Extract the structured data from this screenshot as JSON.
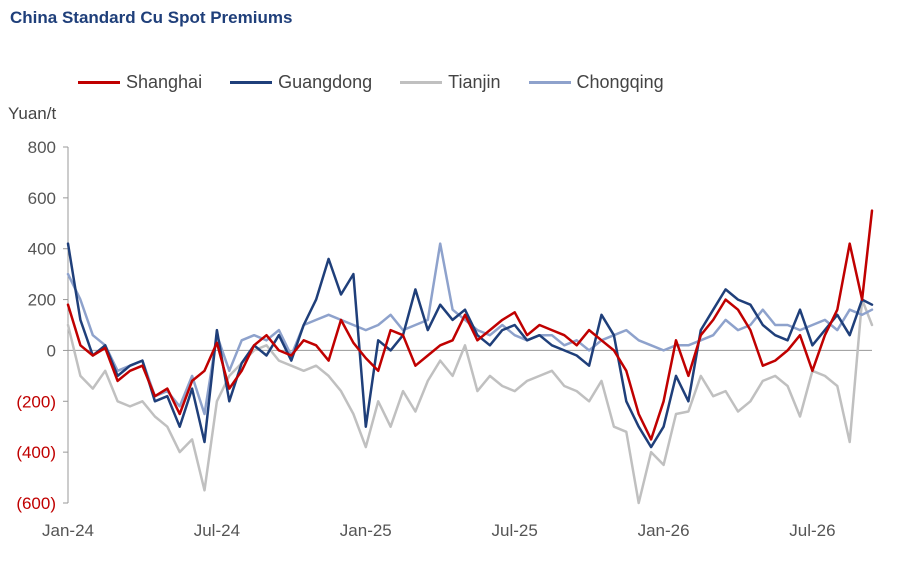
{
  "title": "China Standard Cu Spot Premiums",
  "chart_data": {
    "type": "line",
    "title": "China Standard Cu Spot Premiums",
    "ylabel": "Yuan/t",
    "xlabel": "",
    "ylim": [
      -600,
      800
    ],
    "y_ticks": [
      800,
      600,
      400,
      200,
      0,
      -200,
      -400,
      -600
    ],
    "y_tick_labels": [
      "800",
      "600",
      "400",
      "200",
      "0",
      "(200)",
      "(400)",
      "(600)"
    ],
    "x_tick_labels": [
      "Jan-24",
      "Jul-24",
      "Jan-25",
      "Jul-25",
      "Jan-26",
      "Jul-26"
    ],
    "x_tick_positions": [
      0,
      6,
      12,
      18,
      24,
      30
    ],
    "xlim": [
      0,
      32.4
    ],
    "legend_position": "top",
    "grid": false,
    "x": [
      0,
      0.5,
      1,
      1.5,
      2,
      2.5,
      3,
      3.5,
      4,
      4.5,
      5,
      5.5,
      6,
      6.5,
      7,
      7.5,
      8,
      8.5,
      9,
      9.5,
      10,
      10.5,
      11,
      11.5,
      12,
      12.5,
      13,
      13.5,
      14,
      14.5,
      15,
      15.5,
      16,
      16.5,
      17,
      17.5,
      18,
      18.5,
      19,
      19.5,
      20,
      20.5,
      21,
      21.5,
      22,
      22.5,
      23,
      23.5,
      24,
      24.5,
      25,
      25.5,
      26,
      26.5,
      27,
      27.5,
      28,
      28.5,
      29,
      29.5,
      30,
      30.5,
      31,
      31.5,
      32,
      32.4
    ],
    "series": [
      {
        "name": "Shanghai",
        "color": "#c00000",
        "values": [
          180,
          20,
          -20,
          10,
          -120,
          -80,
          -60,
          -180,
          -150,
          -250,
          -120,
          -80,
          30,
          -150,
          -80,
          20,
          60,
          0,
          -20,
          40,
          20,
          -40,
          120,
          30,
          -30,
          -80,
          80,
          60,
          -60,
          -20,
          20,
          40,
          140,
          40,
          80,
          120,
          150,
          60,
          100,
          80,
          60,
          20,
          80,
          40,
          0,
          -80,
          -250,
          -350,
          -200,
          40,
          -100,
          60,
          120,
          200,
          160,
          80,
          -60,
          -40,
          0,
          60,
          -80,
          60,
          160,
          420,
          200,
          550
        ]
      },
      {
        "name": "Guangdong",
        "color": "#1f3f7a",
        "values": [
          420,
          120,
          -20,
          20,
          -100,
          -60,
          -40,
          -200,
          -180,
          -300,
          -150,
          -360,
          80,
          -200,
          -50,
          20,
          -20,
          60,
          -40,
          100,
          200,
          360,
          220,
          300,
          -300,
          40,
          0,
          60,
          240,
          80,
          180,
          120,
          160,
          60,
          20,
          80,
          100,
          40,
          60,
          20,
          0,
          -20,
          -60,
          140,
          60,
          -200,
          -300,
          -380,
          -300,
          -100,
          -200,
          80,
          160,
          240,
          200,
          180,
          100,
          60,
          40,
          160,
          20,
          80,
          140,
          60,
          200,
          180
        ]
      },
      {
        "name": "Tianjin",
        "color": "#c0c0c0",
        "values": [
          100,
          -100,
          -150,
          -80,
          -200,
          -220,
          -200,
          -260,
          -300,
          -400,
          -350,
          -550,
          -200,
          -100,
          -50,
          0,
          20,
          -40,
          -60,
          -80,
          -60,
          -100,
          -160,
          -250,
          -380,
          -200,
          -300,
          -160,
          -240,
          -120,
          -40,
          -100,
          20,
          -160,
          -100,
          -140,
          -160,
          -120,
          -100,
          -80,
          -140,
          -160,
          -200,
          -120,
          -300,
          -320,
          -600,
          -400,
          -450,
          -250,
          -240,
          -100,
          -180,
          -160,
          -240,
          -200,
          -120,
          -100,
          -140,
          -260,
          -80,
          -100,
          -140,
          -360,
          200,
          100
        ]
      },
      {
        "name": "Chongqing",
        "color": "#8ea2cc",
        "values": [
          300,
          200,
          60,
          20,
          -80,
          -60,
          -40,
          -180,
          -160,
          -220,
          -100,
          -250,
          60,
          -80,
          40,
          60,
          40,
          80,
          -20,
          100,
          120,
          140,
          120,
          100,
          80,
          100,
          140,
          80,
          100,
          120,
          420,
          160,
          120,
          80,
          60,
          100,
          60,
          40,
          60,
          60,
          20,
          40,
          0,
          40,
          60,
          80,
          40,
          20,
          0,
          20,
          20,
          40,
          60,
          120,
          80,
          100,
          160,
          100,
          100,
          80,
          100,
          120,
          80,
          160,
          140,
          160
        ]
      }
    ]
  }
}
